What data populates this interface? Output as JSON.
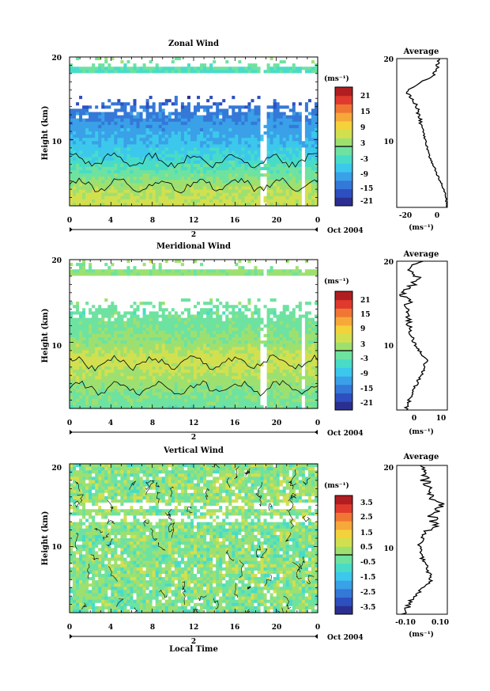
{
  "colors": {
    "scale": [
      "#2b2f8f",
      "#2e4fbf",
      "#3478d8",
      "#3aa0e8",
      "#3cc8ec",
      "#48dcc8",
      "#6ee2a0",
      "#9ee070",
      "#d2e050",
      "#f4d23c",
      "#f6a83a",
      "#f07634",
      "#e03a2e",
      "#b01e22"
    ],
    "contour": "#000000",
    "gap": "#ffffff"
  },
  "panels": [
    {
      "title": "Zonal Wind",
      "ylabel": "Height (km)",
      "y_ticks": [
        "20",
        "10"
      ],
      "x_ticks": [
        "0",
        "4",
        "8",
        "12",
        "16",
        "20",
        "0"
      ],
      "day_label": "2",
      "month_label": "Oct 2004",
      "colorbar_unit": "(ms⁻¹)",
      "colorbar_labels": [
        "21",
        "15",
        "9",
        "3",
        "-3",
        "-9",
        "-15",
        "-21"
      ],
      "avg_title": "Average",
      "avg_y_ticks": [
        "20",
        "10"
      ],
      "avg_x_ticks": [
        "-20",
        "0"
      ],
      "avg_unit": "(ms⁻¹)"
    },
    {
      "title": "Meridional Wind",
      "ylabel": "Height (km)",
      "y_ticks": [
        "20",
        "10"
      ],
      "x_ticks": [
        "0",
        "4",
        "8",
        "12",
        "16",
        "20",
        "0"
      ],
      "day_label": "2",
      "month_label": "Oct 2004",
      "colorbar_unit": "(ms⁻¹)",
      "colorbar_labels": [
        "21",
        "15",
        "9",
        "3",
        "-3",
        "-9",
        "-15",
        "-21"
      ],
      "avg_title": "Average",
      "avg_y_ticks": [
        "20",
        "10"
      ],
      "avg_x_ticks": [
        "0",
        "10"
      ],
      "avg_unit": "(ms⁻¹)"
    },
    {
      "title": "Vertical Wind",
      "ylabel": "Height (km)",
      "y_ticks": [
        "20",
        "10"
      ],
      "x_ticks": [
        "0",
        "4",
        "8",
        "12",
        "16",
        "20",
        "0"
      ],
      "day_label": "2",
      "month_label": "Oct 2004",
      "colorbar_unit": "(ms⁻¹)",
      "colorbar_labels": [
        "3.5",
        "2.5",
        "1.5",
        "0.5",
        "-0.5",
        "-1.5",
        "-2.5",
        "-3.5"
      ],
      "avg_title": "Average",
      "avg_y_ticks": [
        "20",
        "10"
      ],
      "avg_x_ticks": [
        "-0.10",
        "0",
        "0.10"
      ],
      "avg_unit": "(ms⁻¹)"
    }
  ],
  "xlabel": "Local Time",
  "chart_data": [
    {
      "type": "heatmap",
      "title": "Zonal Wind",
      "ylabel": "Height (km)",
      "xlabel": "",
      "x_hours": [
        0,
        4,
        8,
        12,
        16,
        20,
        24
      ],
      "ylim": [
        2,
        20
      ],
      "color_range": [
        -24,
        24
      ],
      "profile_z_km": [
        2,
        4,
        6,
        8,
        10,
        12,
        14,
        15,
        16,
        17,
        18,
        19,
        20
      ],
      "profile_value": [
        5,
        3,
        -2,
        -7,
        -10,
        -13,
        -16,
        -18,
        -24,
        -14,
        -5,
        -2,
        0
      ]
    },
    {
      "type": "heatmap",
      "title": "Meridional Wind",
      "ylabel": "Height (km)",
      "xlabel": "",
      "x_hours": [
        0,
        4,
        8,
        12,
        16,
        20,
        24
      ],
      "ylim": [
        2,
        20
      ],
      "color_range": [
        -24,
        24
      ],
      "profile_z_km": [
        2,
        4,
        6,
        8,
        10,
        12,
        14,
        15,
        16,
        17,
        18,
        19,
        20
      ],
      "profile_value": [
        -2,
        0,
        3,
        5,
        1,
        -1,
        -2,
        -1,
        -3,
        0,
        2,
        -1,
        3
      ]
    },
    {
      "type": "heatmap",
      "title": "Vertical Wind",
      "ylabel": "Height (km)",
      "xlabel": "Local Time",
      "x_hours": [
        0,
        4,
        8,
        12,
        16,
        20,
        24
      ],
      "ylim": [
        2,
        20
      ],
      "color_range": [
        -4,
        4
      ],
      "profile_z_km": [
        2,
        4,
        6,
        8,
        10,
        12,
        13,
        14,
        15,
        16,
        17,
        18,
        19,
        20
      ],
      "profile_value": [
        -0.1,
        -0.05,
        0.05,
        0.02,
        -0.02,
        0.02,
        0.08,
        0.05,
        0.12,
        0.04,
        0.03,
        0.02,
        0.0,
        -0.01
      ]
    }
  ]
}
